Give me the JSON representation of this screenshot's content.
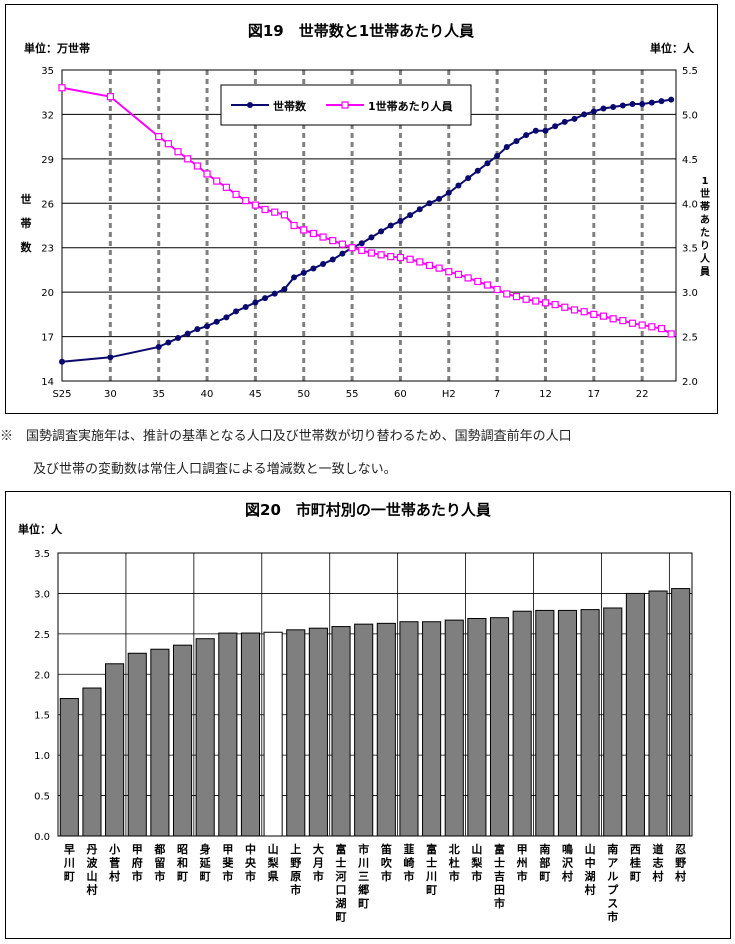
{
  "chart_data": [
    {
      "type": "line",
      "title": "図19　世帯数と1世帯あたり人員",
      "unit_left": "単位：万世帯",
      "unit_right": "単位：人",
      "ylabel_left": "世帯数",
      "ylabel_right": "1世帯あたり人員",
      "x_tick_labels": [
        "S25",
        "30",
        "35",
        "40",
        "45",
        "50",
        "55",
        "60",
        "H2",
        "7",
        "12",
        "17",
        "22"
      ],
      "left_axis": {
        "ylim": [
          14,
          35
        ],
        "ticks": [
          14,
          17,
          20,
          23,
          26,
          29,
          32,
          35
        ]
      },
      "right_axis": {
        "ylim": [
          2.0,
          5.5
        ],
        "ticks": [
          "2.0",
          "2.5",
          "3.0",
          "3.5",
          "4.0",
          "4.5",
          "5.0",
          "5.5"
        ]
      },
      "grid": true,
      "legend_position": "top-center",
      "series": [
        {
          "name": "世帯数",
          "axis": "left",
          "color": "#0a0a6e",
          "x": [
            1950,
            1955,
            1960,
            1961,
            1962,
            1963,
            1964,
            1965,
            1966,
            1967,
            1968,
            1969,
            1970,
            1971,
            1972,
            1973,
            1974,
            1975,
            1976,
            1977,
            1978,
            1979,
            1980,
            1981,
            1982,
            1983,
            1984,
            1985,
            1986,
            1987,
            1988,
            1989,
            1990,
            1991,
            1992,
            1993,
            1994,
            1995,
            1996,
            1997,
            1998,
            1999,
            2000,
            2001,
            2002,
            2003,
            2004,
            2005,
            2006,
            2007,
            2008,
            2009,
            2010,
            2011,
            2012,
            2013
          ],
          "values": [
            15.3,
            15.6,
            16.3,
            16.6,
            16.9,
            17.2,
            17.5,
            17.7,
            18.0,
            18.3,
            18.7,
            19.0,
            19.3,
            19.6,
            19.9,
            20.2,
            21.0,
            21.3,
            21.6,
            21.9,
            22.2,
            22.6,
            23.0,
            23.3,
            23.7,
            24.1,
            24.5,
            24.8,
            25.2,
            25.6,
            26.0,
            26.3,
            26.7,
            27.2,
            27.7,
            28.2,
            28.7,
            29.2,
            29.8,
            30.2,
            30.6,
            30.9,
            30.9,
            31.2,
            31.5,
            31.7,
            32.0,
            32.2,
            32.4,
            32.5,
            32.6,
            32.7,
            32.7,
            32.8,
            32.9,
            33.0
          ]
        },
        {
          "name": "1世帯あたり人員",
          "axis": "right",
          "color": "#ff00ff",
          "x": [
            1950,
            1955,
            1960,
            1961,
            1962,
            1963,
            1964,
            1965,
            1966,
            1967,
            1968,
            1969,
            1970,
            1971,
            1972,
            1973,
            1974,
            1975,
            1976,
            1977,
            1978,
            1979,
            1980,
            1981,
            1982,
            1983,
            1984,
            1985,
            1986,
            1987,
            1988,
            1989,
            1990,
            1991,
            1992,
            1993,
            1994,
            1995,
            1996,
            1997,
            1998,
            1999,
            2000,
            2001,
            2002,
            2003,
            2004,
            2005,
            2006,
            2007,
            2008,
            2009,
            2010,
            2011,
            2012,
            2013
          ],
          "values": [
            5.3,
            5.2,
            4.75,
            4.67,
            4.58,
            4.5,
            4.42,
            4.33,
            4.25,
            4.18,
            4.1,
            4.03,
            3.98,
            3.93,
            3.9,
            3.87,
            3.75,
            3.7,
            3.66,
            3.62,
            3.58,
            3.54,
            3.5,
            3.47,
            3.44,
            3.42,
            3.4,
            3.39,
            3.37,
            3.34,
            3.3,
            3.27,
            3.23,
            3.2,
            3.16,
            3.12,
            3.08,
            3.03,
            2.98,
            2.95,
            2.92,
            2.9,
            2.88,
            2.86,
            2.83,
            2.8,
            2.78,
            2.75,
            2.73,
            2.7,
            2.68,
            2.65,
            2.63,
            2.61,
            2.59,
            2.53
          ]
        }
      ]
    },
    {
      "type": "bar",
      "title": "図20　市町村別の一世帯あたり人員",
      "unit": "単位：人",
      "ylim": [
        0.0,
        3.5
      ],
      "y_ticks": [
        "0.0",
        "0.5",
        "1.0",
        "1.5",
        "2.0",
        "2.5",
        "3.0",
        "3.5"
      ],
      "grid": true,
      "bar_color": "#7f7f7f",
      "highlight_color": "#ffffff",
      "highlight_category": "山梨県",
      "categories": [
        "早川町",
        "丹波山村",
        "小菅村",
        "甲府市",
        "都留市",
        "昭和町",
        "身延町",
        "甲斐市",
        "中央市",
        "山梨県",
        "上野原市",
        "大月市",
        "富士河口湖町",
        "市川三郷町",
        "笛吹市",
        "韮崎市",
        "富士川町",
        "北杜市",
        "山梨市",
        "富士吉田市",
        "甲州市",
        "南部町",
        "鳴沢村",
        "山中湖村",
        "南アルプス市",
        "西桂町",
        "道志村",
        "忍野村"
      ],
      "values": [
        1.7,
        1.83,
        2.13,
        2.26,
        2.31,
        2.36,
        2.44,
        2.51,
        2.51,
        2.52,
        2.55,
        2.57,
        2.59,
        2.62,
        2.63,
        2.65,
        2.65,
        2.67,
        2.69,
        2.7,
        2.78,
        2.79,
        2.79,
        2.8,
        2.82,
        3.0,
        3.03,
        3.06
      ]
    }
  ],
  "notes": {
    "line1": "※　国勢調査実施年は、推計の基準となる人口及び世帯数が切り替わるため、国勢調査前年の人口",
    "line2": "及び世帯の変動数は常住人口調査による増減数と一致しない。"
  }
}
